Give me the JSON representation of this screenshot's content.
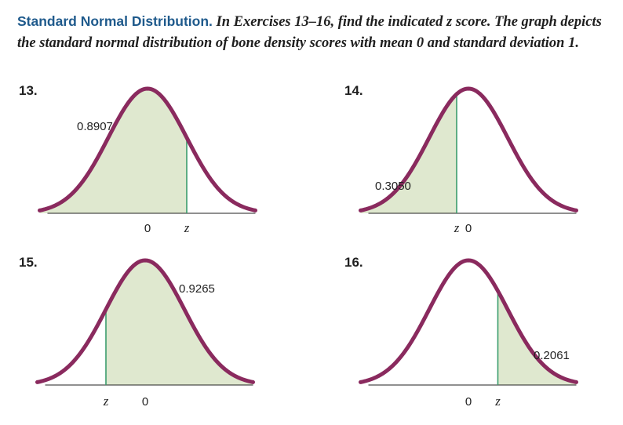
{
  "header": {
    "lead": "Standard Normal Distribution.",
    "instructions": "In Exercises 13–16, find the indicated z score. The graph depicts the standard normal distribution of bone density scores with mean 0 and standard deviation 1."
  },
  "colors": {
    "curve": "#8a2a5e",
    "fill": "#dfe8cf",
    "boundary": "#3b9d6d",
    "heading": "#1f5a8c"
  },
  "exercises": [
    {
      "number": "13.",
      "area": "0.8907",
      "shaded": "left",
      "z_side": "right",
      "zero_label": "0",
      "z_label": "z"
    },
    {
      "number": "14.",
      "area": "0.3050",
      "shaded": "left",
      "z_side": "left",
      "zero_label": "0",
      "z_label": "z"
    },
    {
      "number": "15.",
      "area": "0.9265",
      "shaded": "right",
      "z_side": "left",
      "zero_label": "0",
      "z_label": "z"
    },
    {
      "number": "16.",
      "area": "0.2061",
      "shaded": "right",
      "z_side": "right",
      "zero_label": "0",
      "z_label": "z"
    }
  ]
}
